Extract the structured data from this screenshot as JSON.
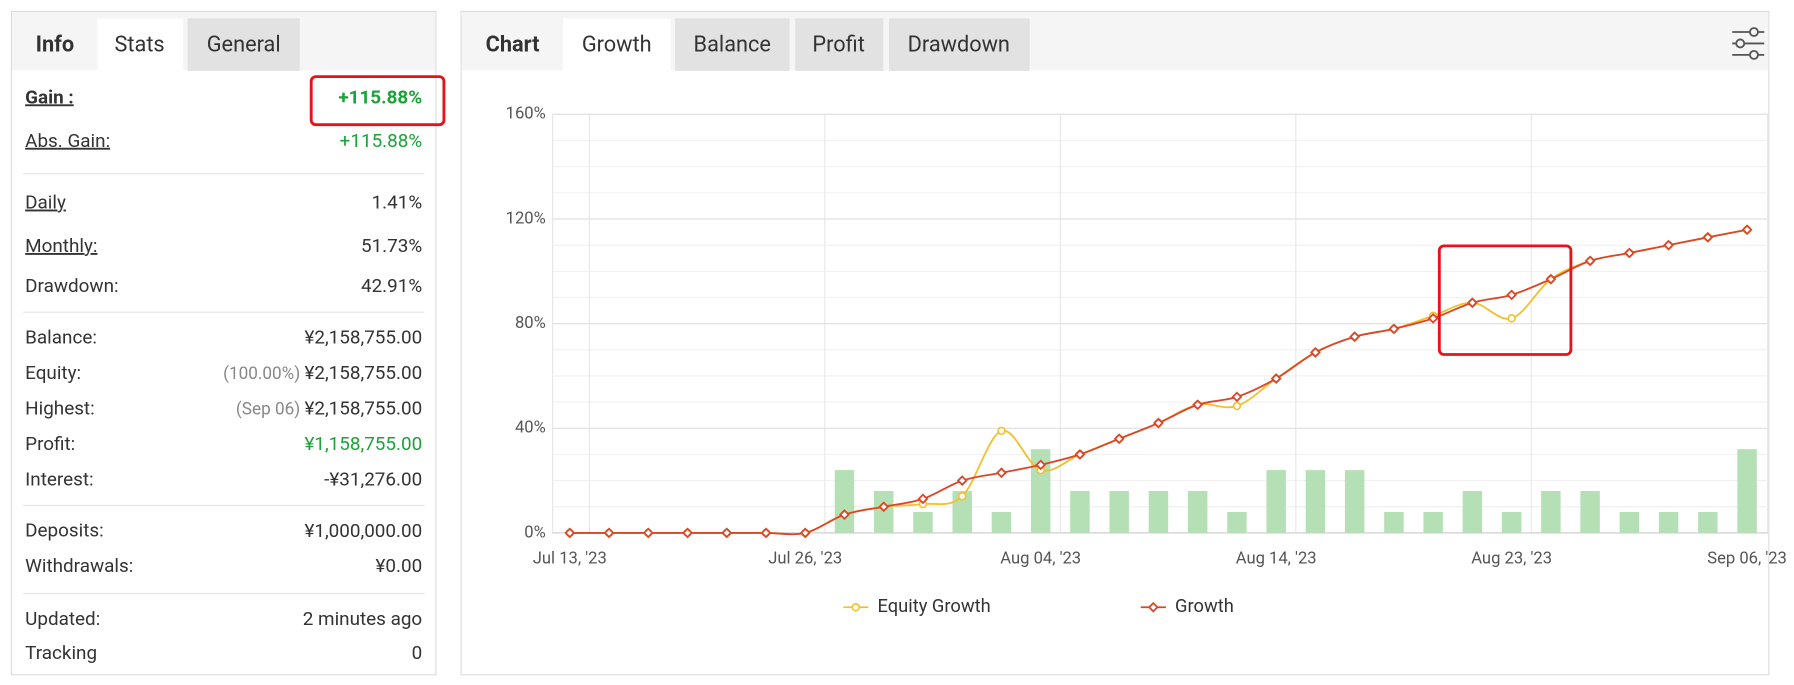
{
  "stats_panel": {
    "tabs": [
      "Info",
      "Stats",
      "General"
    ],
    "rows": [
      {
        "label": "Gain :",
        "value": "+115.88%"
      },
      {
        "label": "Abs. Gain:",
        "value": "+115.88%"
      },
      {
        "label": "Daily",
        "value": "1.41%"
      },
      {
        "label": "Monthly:",
        "value": "51.73%"
      },
      {
        "label": "Drawdown:",
        "value": "42.91%"
      },
      {
        "label": "Balance:",
        "value": "¥2,158,755.00"
      },
      {
        "label": "Equity:",
        "note": "(100.00%)",
        "value": "¥2,158,755.00"
      },
      {
        "label": "Highest:",
        "note": "(Sep 06)",
        "value": "¥2,158,755.00"
      },
      {
        "label": "Profit:",
        "value": "¥1,158,755.00"
      },
      {
        "label": "Interest:",
        "value": "-¥31,276.00"
      },
      {
        "label": "Deposits:",
        "value": "¥1,000,000.00"
      },
      {
        "label": "Withdrawals:",
        "value": "¥0.00"
      },
      {
        "label": "Updated:",
        "value": "2 minutes ago"
      },
      {
        "label": "Tracking",
        "value": "0"
      }
    ]
  },
  "chart_tabs": [
    "Chart",
    "Growth",
    "Balance",
    "Profit",
    "Drawdown"
  ],
  "chart_data": {
    "type": "line",
    "categories": [
      "Jul 13, '23",
      null,
      null,
      null,
      null,
      null,
      "Jul 26, '23",
      null,
      null,
      null,
      null,
      null,
      "Aug 04, '23",
      null,
      null,
      null,
      null,
      null,
      "Aug 14, '23",
      null,
      null,
      null,
      null,
      null,
      "Aug 23, '23",
      null,
      null,
      null,
      null,
      null,
      "Sep 06, '23"
    ],
    "ylim": [
      0,
      160
    ],
    "yticks": [
      {
        "value": 0,
        "label": "0%"
      },
      {
        "value": 40,
        "label": "40%"
      },
      {
        "value": 80,
        "label": "80%"
      },
      {
        "value": 120,
        "label": "120%"
      },
      {
        "value": 160,
        "label": "160%"
      }
    ],
    "grid": true,
    "legend": "bottom",
    "series": [
      {
        "type": "bar",
        "color": "#b5dfb5",
        "values": [
          null,
          null,
          null,
          null,
          null,
          null,
          null,
          24,
          16,
          8,
          16,
          8,
          32,
          16,
          16,
          16,
          16,
          8,
          24,
          24,
          24,
          8,
          8,
          16,
          8,
          16,
          16,
          8,
          8,
          8,
          32
        ]
      },
      {
        "type": "line",
        "name": "Equity Growth",
        "color": "#f2c12e",
        "marker": "circle",
        "values": [
          0,
          0,
          0,
          0,
          0,
          0,
          0,
          7,
          10,
          11,
          14,
          39,
          24,
          30,
          36,
          42,
          49,
          48.5,
          59,
          69,
          75,
          78,
          83,
          88,
          82,
          97,
          104,
          107,
          110,
          113,
          115.88
        ]
      },
      {
        "type": "line",
        "name": "Growth",
        "color": "#d9472b",
        "marker": "diamond",
        "values": [
          0,
          0,
          0,
          0,
          0,
          0,
          0,
          7,
          10,
          13,
          20,
          23,
          26,
          30,
          36,
          42,
          49,
          52,
          59,
          69,
          75,
          78,
          82,
          88,
          91,
          97,
          104,
          107,
          110,
          113,
          115.88
        ]
      }
    ]
  }
}
